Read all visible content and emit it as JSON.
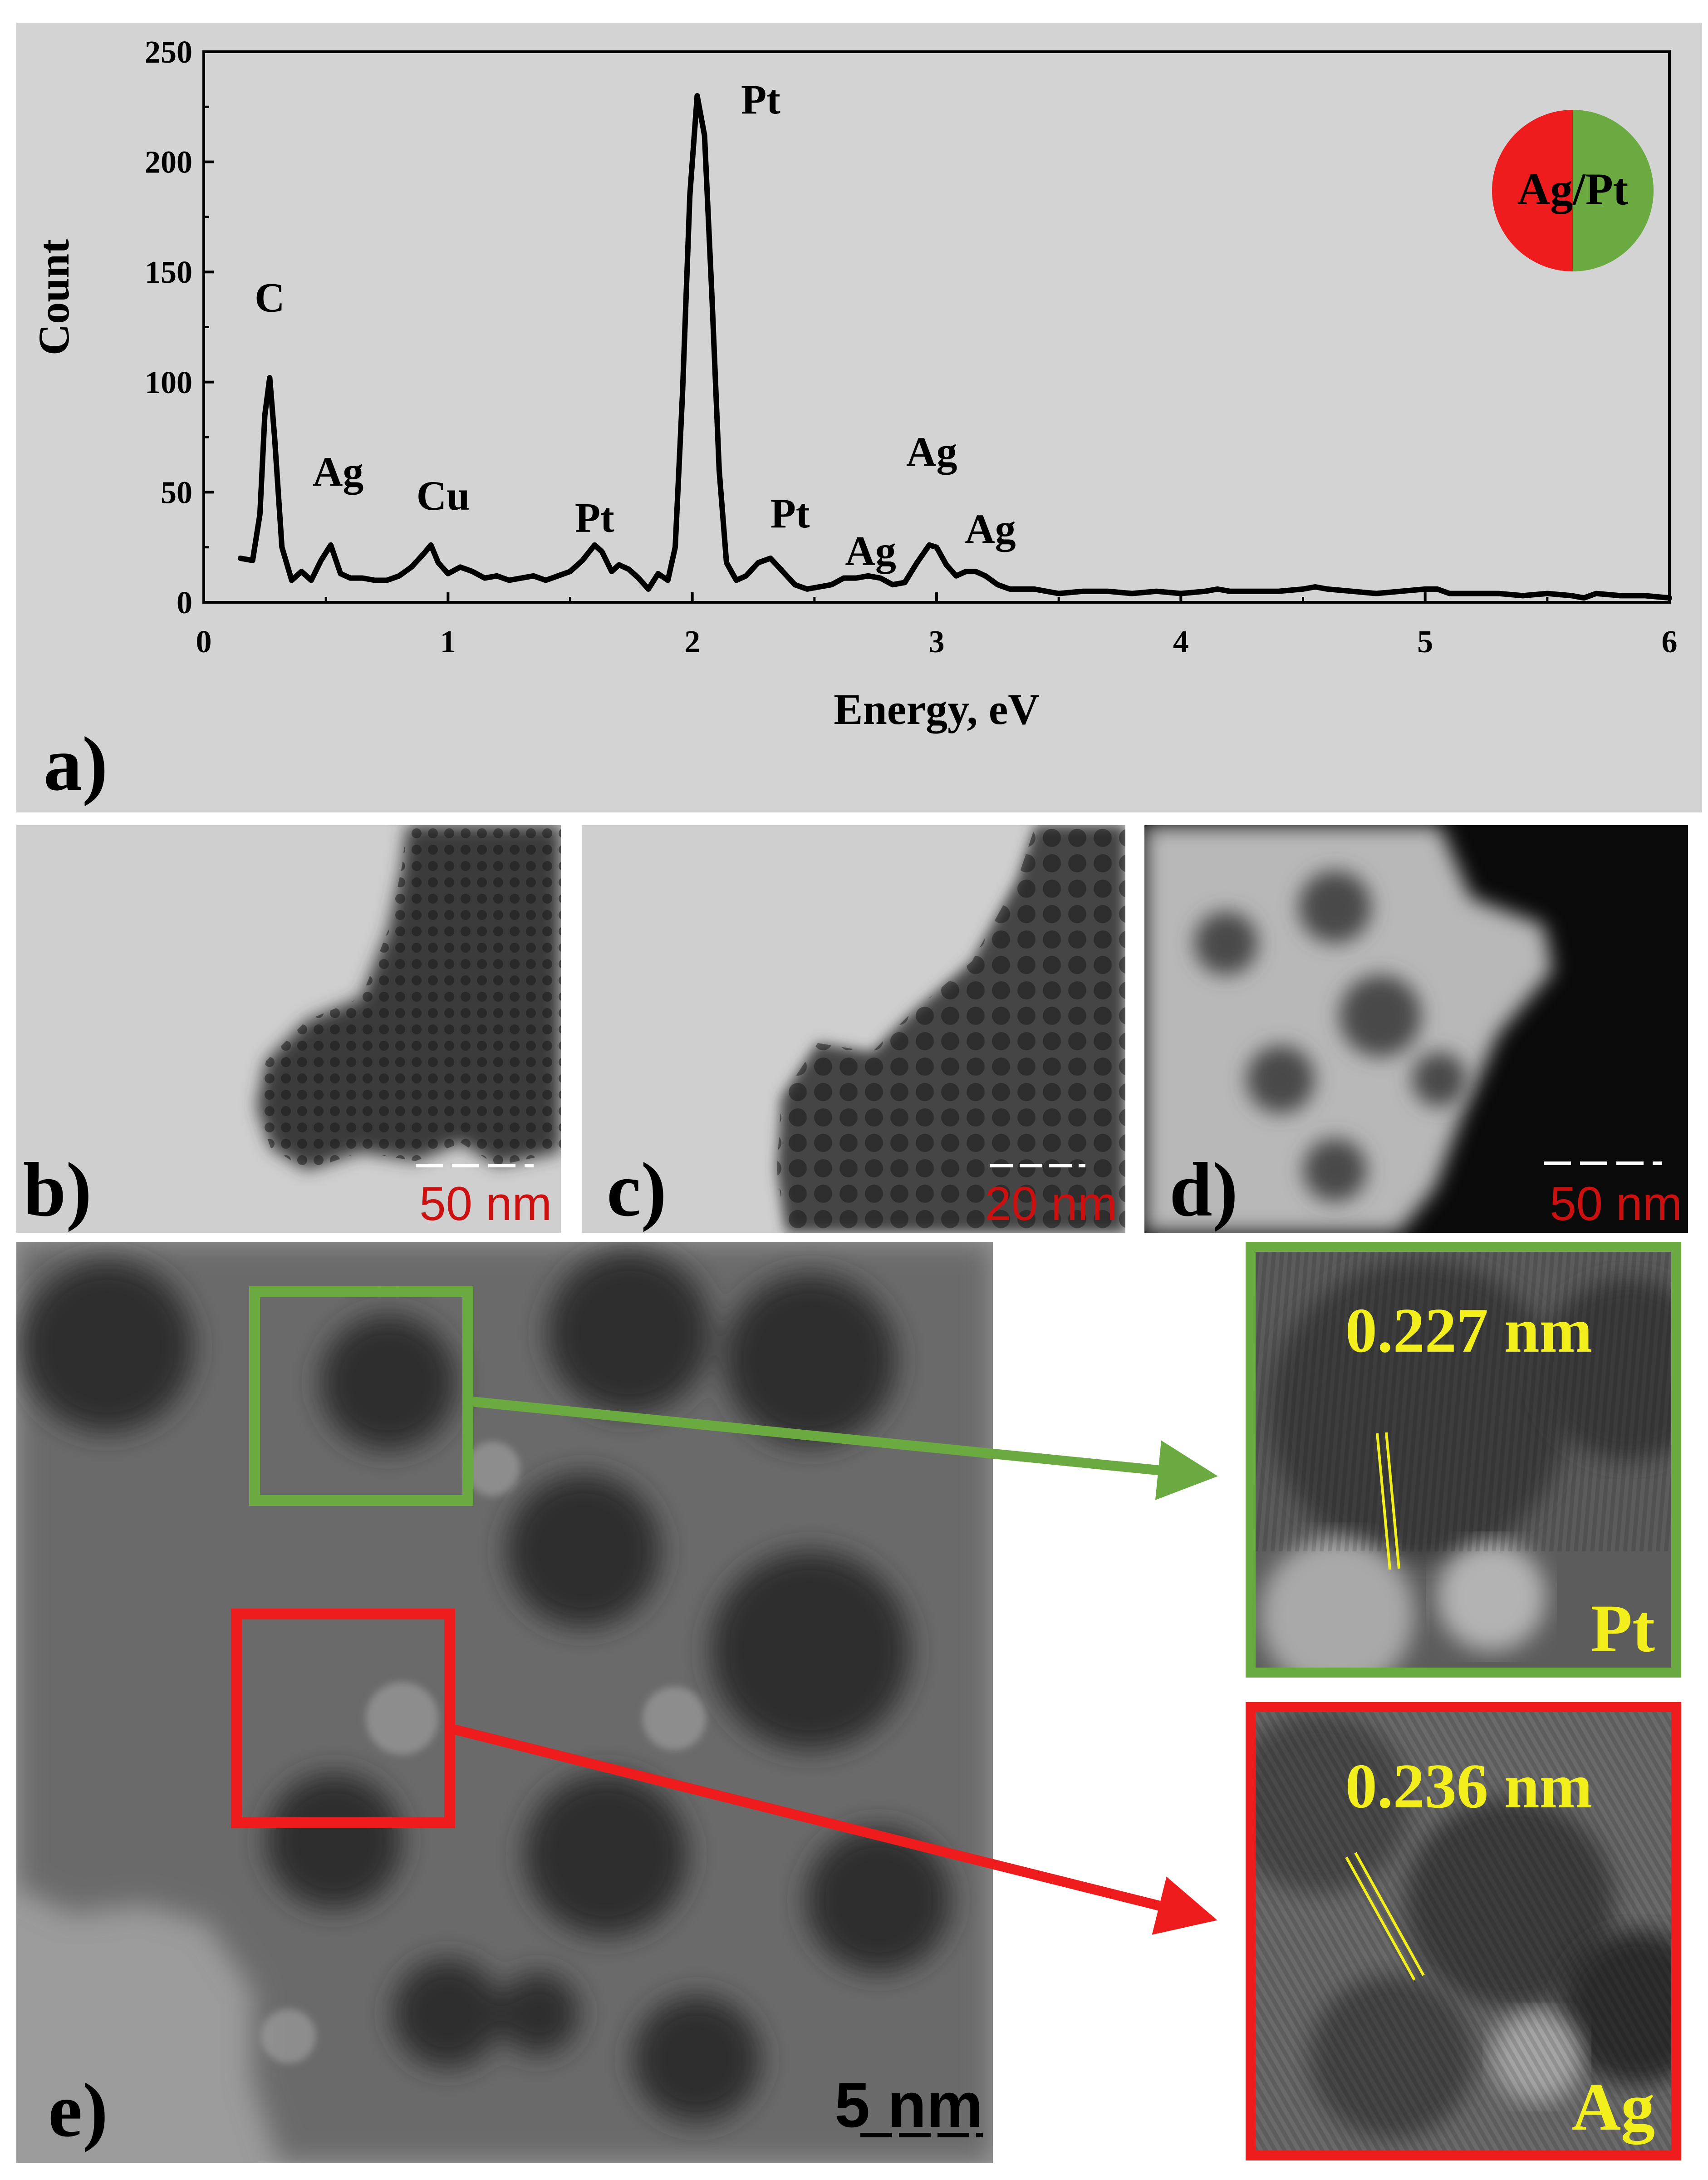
{
  "figure": {
    "panels": {
      "a": {
        "label": "a)"
      },
      "b": {
        "label": "b)",
        "scalebar": "50 nm"
      },
      "c": {
        "label": "c)",
        "scalebar": "20 nm"
      },
      "d": {
        "label": "d)",
        "scalebar": "50 nm"
      },
      "e": {
        "label": "e)",
        "scalebar": "5 nm",
        "zoom_pt": {
          "spacing": "0.227 nm",
          "element": "Pt"
        },
        "zoom_ag": {
          "spacing": "0.236 nm",
          "element": "Ag"
        }
      }
    },
    "badge": "Ag/Pt",
    "colors": {
      "ag": "#ee1c1c",
      "pt": "#6aaa40",
      "lattice": "#f3ef1c",
      "scalebar_text": "#cc1010",
      "chart_bg": "#d3d3d3"
    }
  },
  "chart_data": {
    "type": "line",
    "xlabel": "Energy, eV",
    "ylabel": "Count",
    "xlim": [
      0,
      6
    ],
    "ylim": [
      0,
      250
    ],
    "xticks": [
      0,
      1,
      2,
      3,
      4,
      5,
      6
    ],
    "yticks": [
      0,
      50,
      100,
      150,
      200,
      250
    ],
    "grid": false,
    "x": [
      0.15,
      0.2,
      0.23,
      0.25,
      0.27,
      0.29,
      0.32,
      0.36,
      0.4,
      0.44,
      0.48,
      0.52,
      0.56,
      0.6,
      0.65,
      0.7,
      0.75,
      0.8,
      0.85,
      0.9,
      0.93,
      0.96,
      1.0,
      1.05,
      1.1,
      1.15,
      1.2,
      1.25,
      1.3,
      1.35,
      1.4,
      1.45,
      1.5,
      1.55,
      1.6,
      1.63,
      1.67,
      1.7,
      1.74,
      1.78,
      1.82,
      1.86,
      1.9,
      1.93,
      1.96,
      1.99,
      2.02,
      2.05,
      2.08,
      2.11,
      2.14,
      2.18,
      2.22,
      2.27,
      2.32,
      2.37,
      2.42,
      2.47,
      2.52,
      2.57,
      2.62,
      2.67,
      2.72,
      2.77,
      2.82,
      2.87,
      2.92,
      2.97,
      3.0,
      3.04,
      3.08,
      3.12,
      3.16,
      3.2,
      3.25,
      3.3,
      3.4,
      3.5,
      3.6,
      3.7,
      3.8,
      3.9,
      4.0,
      4.1,
      4.15,
      4.2,
      4.3,
      4.4,
      4.5,
      4.55,
      4.6,
      4.7,
      4.8,
      4.9,
      5.0,
      5.05,
      5.1,
      5.15,
      5.2,
      5.3,
      5.4,
      5.5,
      5.6,
      5.65,
      5.7,
      5.8,
      5.9,
      6.0
    ],
    "y": [
      20,
      19,
      40,
      85,
      102,
      75,
      25,
      10,
      14,
      10,
      19,
      26,
      13,
      11,
      11,
      10,
      10,
      12,
      16,
      22,
      26,
      18,
      13,
      16,
      14,
      11,
      12,
      10,
      11,
      12,
      10,
      12,
      14,
      19,
      26,
      23,
      14,
      17,
      15,
      11,
      6,
      13,
      10,
      25,
      95,
      185,
      230,
      212,
      140,
      60,
      18,
      10,
      12,
      18,
      20,
      14,
      8,
      6,
      7,
      8,
      11,
      11,
      12,
      11,
      8,
      9,
      18,
      26,
      25,
      17,
      12,
      14,
      14,
      12,
      8,
      6,
      6,
      4,
      5,
      5,
      4,
      5,
      4,
      5,
      6,
      5,
      5,
      5,
      6,
      7,
      6,
      5,
      4,
      5,
      6,
      6,
      4,
      4,
      4,
      4,
      3,
      4,
      3,
      2,
      4,
      3,
      3,
      2
    ]
  },
  "peak_labels": [
    {
      "text": "C",
      "x": 0.27,
      "y": 132
    },
    {
      "text": "Ag",
      "x": 0.55,
      "y": 53
    },
    {
      "text": "Cu",
      "x": 0.98,
      "y": 42
    },
    {
      "text": "Pt",
      "x": 1.6,
      "y": 32
    },
    {
      "text": "Pt",
      "x": 2.28,
      "y": 222
    },
    {
      "text": "Pt",
      "x": 2.4,
      "y": 34
    },
    {
      "text": "Ag",
      "x": 2.73,
      "y": 17
    },
    {
      "text": "Ag",
      "x": 2.98,
      "y": 62
    },
    {
      "text": "Ag",
      "x": 3.22,
      "y": 27
    }
  ]
}
